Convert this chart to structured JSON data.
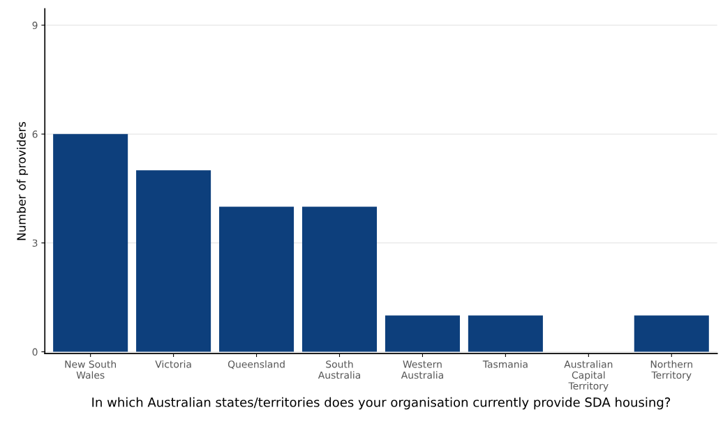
{
  "chart_data": {
    "type": "bar",
    "categories": [
      "New South\nWales",
      "Victoria",
      "Queensland",
      "South\nAustralia",
      "Western\nAustralia",
      "Tasmania",
      "Australian\nCapital\nTerritory",
      "Northern\nTerritory"
    ],
    "values": [
      6,
      5,
      4,
      4,
      1,
      1,
      0,
      1
    ],
    "color": "#0d3f7c",
    "ylim": [
      -0.05,
      9.45
    ],
    "yticks": [
      0,
      3,
      6,
      9
    ],
    "ylabel": "Number of providers",
    "xlabel": "In which Australian states/territories does your organisation currently provide SDA housing?",
    "grid": "y"
  }
}
